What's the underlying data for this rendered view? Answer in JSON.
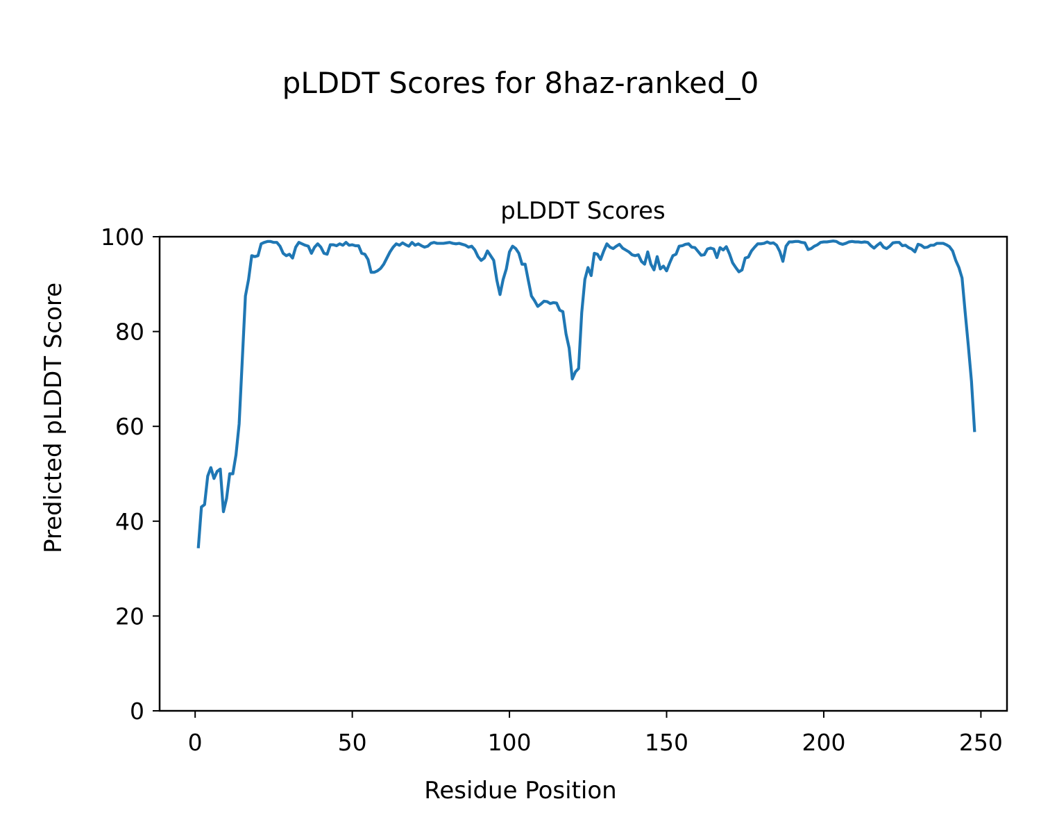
{
  "figure": {
    "suptitle": "pLDDT Scores for 8haz-ranked_0"
  },
  "chart_data": {
    "type": "line",
    "title": "pLDDT Scores",
    "xlabel": "Residue Position",
    "ylabel": "Predicted pLDDT Score",
    "xlim": [
      -11.3,
      258.3
    ],
    "ylim": [
      0,
      100
    ],
    "x_ticks": [
      0,
      50,
      100,
      150,
      200,
      250
    ],
    "y_ticks": [
      0,
      20,
      40,
      60,
      80,
      100
    ],
    "grid": false,
    "line_color": "#1f77b4",
    "series": [
      {
        "x_start": 1,
        "values": [
          34.3,
          43,
          43.5,
          49.5,
          51.3,
          49,
          50.5,
          51,
          42,
          44.8,
          50,
          50,
          54,
          60.5,
          74,
          87.5,
          91,
          96,
          95.8,
          96,
          98.5,
          98.8,
          99,
          99,
          98.8,
          98.8,
          98,
          96.5,
          96,
          96.3,
          95.5,
          97.8,
          98.8,
          98.5,
          98.2,
          98,
          96.5,
          97.8,
          98.5,
          97.8,
          96.5,
          96.3,
          98.3,
          98.3,
          98.1,
          98.5,
          98.2,
          98.8,
          98.2,
          98.3,
          98.1,
          98.1,
          96.5,
          96.3,
          95.2,
          92.5,
          92.5,
          92.8,
          93.3,
          94.2,
          95.5,
          96.8,
          97.8,
          98.5,
          98.2,
          98.7,
          98.3,
          98,
          98.8,
          98.2,
          98.5,
          98.1,
          97.8,
          98,
          98.6,
          98.8,
          98.6,
          98.6,
          98.6,
          98.7,
          98.8,
          98.6,
          98.5,
          98.6,
          98.4,
          98.2,
          97.8,
          98,
          97.2,
          95.8,
          95,
          95.5,
          97,
          96,
          95,
          90.8,
          87.8,
          91,
          93.2,
          96.8,
          98,
          97.5,
          96.5,
          94.2,
          94.2,
          90.8,
          87.5,
          86.5,
          85.3,
          85.8,
          86.4,
          86.3,
          85.9,
          86.1,
          86,
          84.5,
          84.2,
          79.5,
          76.5,
          70,
          71.5,
          72.2,
          84,
          91,
          93.5,
          91.8,
          96.5,
          96.3,
          95.2,
          97,
          98.5,
          97.8,
          97.5,
          98,
          98.4,
          97.6,
          97.2,
          96.8,
          96.2,
          96,
          96.2,
          94.8,
          94.2,
          96.8,
          94.2,
          93,
          95.8,
          93.2,
          93.8,
          92.8,
          94.5,
          96,
          96.3,
          98,
          98.1,
          98.4,
          98.5,
          97.8,
          97.7,
          96.9,
          96.1,
          96.2,
          97.4,
          97.6,
          97.4,
          95.6,
          97.7,
          97.2,
          97.9,
          96.4,
          94.5,
          93.5,
          92.6,
          93,
          95.5,
          95.7,
          97,
          97.8,
          98.5,
          98.5,
          98.6,
          98.9,
          98.6,
          98.7,
          98.2,
          96.9,
          94.8,
          98,
          98.9,
          98.9,
          99,
          99,
          98.8,
          98.7,
          97.3,
          97.5,
          98,
          98.3,
          98.8,
          98.9,
          98.9,
          99,
          99.1,
          99,
          98.6,
          98.4,
          98.6,
          98.9,
          99,
          98.9,
          98.9,
          98.8,
          98.9,
          98.8,
          98.1,
          97.6,
          98.2,
          98.7,
          97.8,
          97.5,
          98,
          98.7,
          98.8,
          98.8,
          98.1,
          98.2,
          97.7,
          97.4,
          96.8,
          98.4,
          98.2,
          97.7,
          97.8,
          98.2,
          98.2,
          98.6,
          98.6,
          98.6,
          98.3,
          97.9,
          97,
          95,
          93.5,
          91.3,
          84,
          77,
          69.5,
          58.8
        ]
      }
    ]
  }
}
